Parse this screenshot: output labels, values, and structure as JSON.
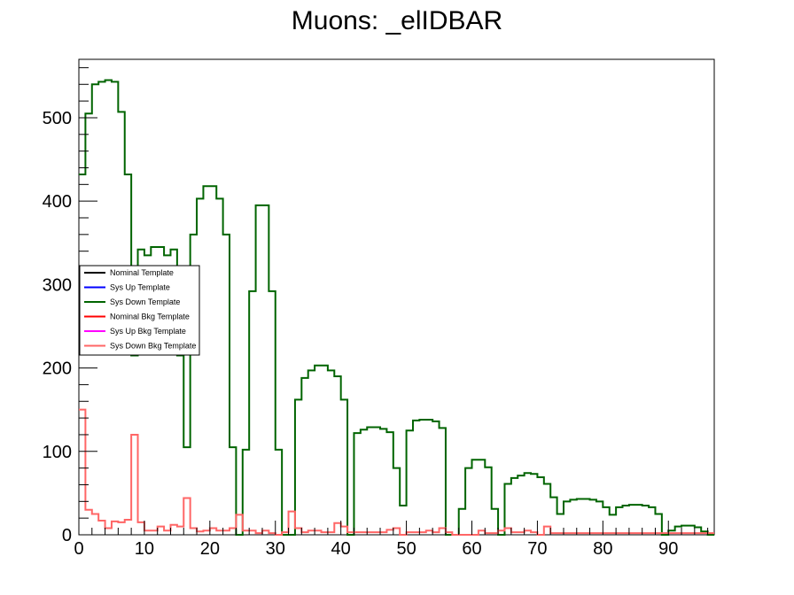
{
  "chart_data": {
    "type": "histogram",
    "title": "Muons: _elIDBAR",
    "xlabel": "",
    "ylabel": "",
    "xlim": [
      0,
      97
    ],
    "ylim": [
      0,
      570
    ],
    "bin_width": 1,
    "x_ticks": [
      0,
      10,
      20,
      30,
      40,
      50,
      60,
      70,
      80,
      90
    ],
    "x_tick_labels": [
      "0",
      "10",
      "20",
      "30",
      "40",
      "50",
      "60",
      "70",
      "80",
      "90"
    ],
    "y_ticks": [
      0,
      100,
      200,
      300,
      400,
      500
    ],
    "y_tick_labels": [
      "0",
      "100",
      "200",
      "300",
      "400",
      "500"
    ],
    "grid": false,
    "legend_position": "left",
    "series": [
      {
        "name": "Nominal Template",
        "color": "#000000",
        "values": []
      },
      {
        "name": "Sys Up Template",
        "color": "#0000ff",
        "values": []
      },
      {
        "name": "Sys Down Template",
        "color": "#006400",
        "values": [
          432,
          505,
          540,
          543,
          545,
          543,
          507,
          432,
          215,
          342,
          335,
          345,
          345,
          335,
          342,
          215,
          105,
          360,
          403,
          418,
          418,
          403,
          360,
          105,
          0,
          102,
          292,
          395,
          395,
          292,
          102,
          0,
          0,
          162,
          188,
          197,
          203,
          203,
          197,
          190,
          162,
          0,
          122,
          126,
          129,
          129,
          127,
          123,
          80,
          35,
          125,
          137,
          138,
          138,
          136,
          128,
          0,
          0,
          31,
          80,
          90,
          90,
          81,
          31,
          0,
          61,
          68,
          71,
          74,
          73,
          69,
          61,
          45,
          25,
          40,
          42,
          43,
          43,
          42,
          40,
          33,
          24,
          33,
          35,
          36,
          36,
          35,
          33,
          25,
          0,
          5,
          10,
          11,
          11,
          9,
          4,
          0
        ]
      },
      {
        "name": "Nominal Bkg Template",
        "color": "#ff0000",
        "values": []
      },
      {
        "name": "Sys Up Bkg Template",
        "color": "#ff00ff",
        "values": []
      },
      {
        "name": "Sys Down Bkg Template",
        "color": "#ff6666",
        "values": [
          150,
          30,
          25,
          17,
          8,
          16,
          15,
          18,
          120,
          15,
          5,
          5,
          10,
          5,
          12,
          10,
          44,
          8,
          4,
          5,
          8,
          5,
          5,
          8,
          24,
          5,
          5,
          2,
          5,
          2,
          0,
          3,
          28,
          8,
          3,
          5,
          5,
          3,
          3,
          14,
          10,
          3,
          3,
          3,
          3,
          3,
          3,
          6,
          8,
          0,
          3,
          3,
          3,
          5,
          3,
          8,
          3,
          0,
          0,
          0,
          0,
          5,
          2,
          2,
          5,
          8,
          3,
          3,
          5,
          3,
          0,
          10,
          2,
          2,
          2,
          2,
          2,
          2,
          2,
          2,
          2,
          2,
          2,
          2,
          2,
          2,
          2,
          2,
          2,
          2,
          2,
          2,
          2,
          2,
          2,
          2,
          2
        ]
      }
    ]
  }
}
